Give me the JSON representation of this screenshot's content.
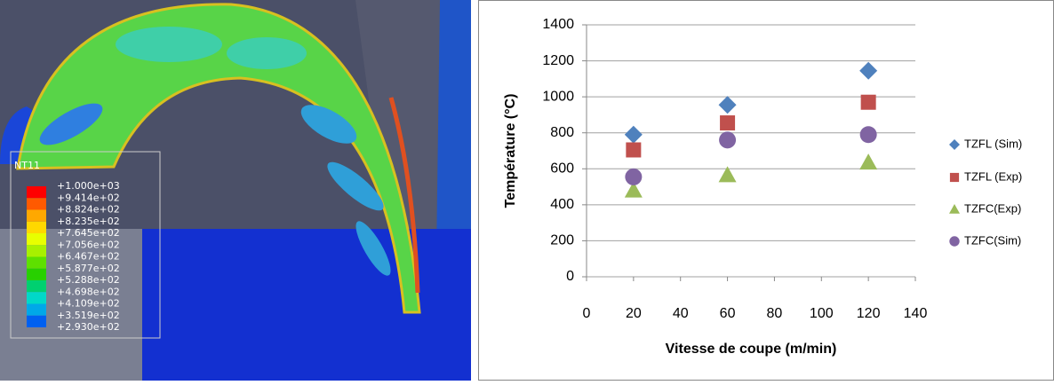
{
  "chart_data": {
    "type": "scatter",
    "x_label": "Vitesse de coupe (m/min)",
    "y_label": "Température (°C)",
    "x": [
      20,
      60,
      120
    ],
    "series": [
      {
        "name": "TZFL (Sim)",
        "color": "#4f81bd",
        "marker": "diamond",
        "values": [
          790,
          955,
          1145
        ]
      },
      {
        "name": "TZFL (Exp)",
        "color": "#c0504d",
        "marker": "square",
        "values": [
          705,
          855,
          970
        ]
      },
      {
        "name": "TZFC(Exp)",
        "color": "#9bbb59",
        "marker": "triangle",
        "values": [
          480,
          565,
          635
        ]
      },
      {
        "name": "TZFC(Sim)",
        "color": "#8064a2",
        "marker": "circle",
        "values": [
          555,
          760,
          790
        ]
      }
    ],
    "xlim": [
      0,
      140
    ],
    "xticks": [
      0,
      20,
      40,
      60,
      80,
      100,
      120,
      140
    ],
    "ylim": [
      0,
      1400
    ],
    "yticks": [
      0,
      200,
      400,
      600,
      800,
      1000,
      1200,
      1400
    ],
    "grid": true,
    "legend": "right"
  },
  "contour_legend": {
    "title": "NT11",
    "labels": [
      "+1.000e+03",
      "+9.414e+02",
      "+8.824e+02",
      "+8.235e+02",
      "+7.645e+02",
      "+7.056e+02",
      "+6.467e+02",
      "+5.877e+02",
      "+5.288e+02",
      "+4.698e+02",
      "+4.109e+02",
      "+3.519e+02",
      "+2.930e+02"
    ]
  }
}
